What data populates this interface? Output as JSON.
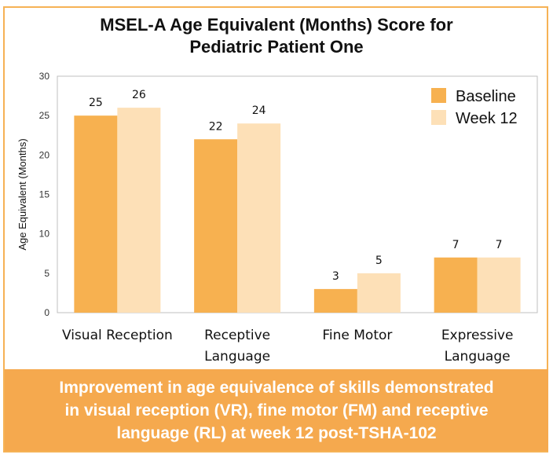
{
  "chart_data": {
    "type": "bar",
    "title_line1": "MSEL-A Age Equivalent (Months) Score for",
    "title_line2": "Pediatric Patient One",
    "ylabel": "Age Equivalent (Months)",
    "xlabel": "",
    "ylim": [
      0,
      30
    ],
    "yticks": [
      0,
      5,
      10,
      15,
      20,
      25,
      30
    ],
    "categories": [
      [
        "Visual Reception"
      ],
      [
        "Receptive",
        "Language"
      ],
      [
        "Fine Motor"
      ],
      [
        "Expressive",
        "Language"
      ]
    ],
    "series": [
      {
        "name": "Baseline",
        "values": [
          25,
          22,
          3,
          7
        ],
        "color": "#f7b150"
      },
      {
        "name": "Week 12",
        "values": [
          26,
          24,
          5,
          7
        ],
        "color": "#fde0b7"
      }
    ],
    "legend_position": "top-right"
  },
  "banner": {
    "line1": "Improvement in age equivalence of skills demonstrated",
    "line2": "in visual reception (VR), fine motor (FM) and receptive",
    "line3": "language (RL) at week 12 post-TSHA-102"
  }
}
